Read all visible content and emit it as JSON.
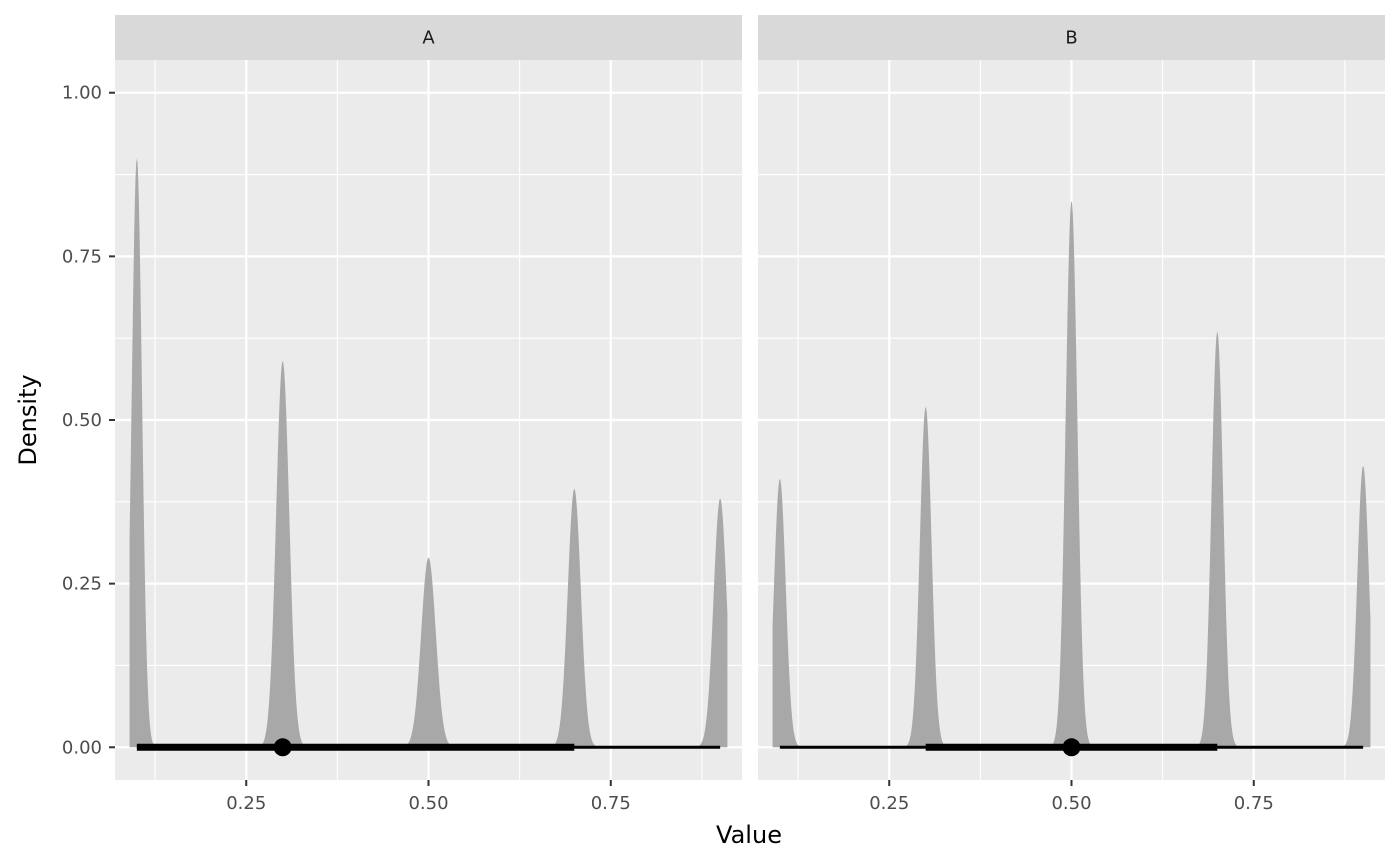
{
  "chart_data": {
    "type": "area",
    "subtype": "faceted-density-with-interval",
    "xlabel": "Value",
    "ylabel": "Density",
    "x_ticks": [
      0.25,
      0.5,
      0.75
    ],
    "x_tick_labels": [
      "0.25",
      "0.50",
      "0.75"
    ],
    "y_ticks": [
      0,
      0.25,
      0.5,
      0.75,
      1.0
    ],
    "y_tick_labels": [
      "0.00",
      "0.25",
      "0.50",
      "0.75",
      "1.00"
    ],
    "xlim": [
      0.07,
      0.93
    ],
    "ylim": [
      -0.05,
      1.05
    ],
    "grid": true,
    "colors": {
      "panel_bg": "#ebebeb",
      "strip_bg": "#d9d9d9",
      "grid": "#ffffff",
      "density_fill": "#a8a8a8",
      "interval": "#000000"
    },
    "facets": [
      {
        "label": "A",
        "range": [
          0.09,
          0.91
        ],
        "peaks": [
          {
            "x": 0.1,
            "height": 0.9,
            "sd": 0.007
          },
          {
            "x": 0.3,
            "height": 0.59,
            "sd": 0.009
          },
          {
            "x": 0.5,
            "height": 0.29,
            "sd": 0.01
          },
          {
            "x": 0.7,
            "height": 0.395,
            "sd": 0.009
          },
          {
            "x": 0.9,
            "height": 0.38,
            "sd": 0.009
          }
        ],
        "point": 0.3,
        "interval_thick": [
          0.1,
          0.7
        ],
        "interval_thin": [
          0.1,
          0.9
        ]
      },
      {
        "label": "B",
        "range": [
          0.09,
          0.91
        ],
        "peaks": [
          {
            "x": 0.1,
            "height": 0.41,
            "sd": 0.008
          },
          {
            "x": 0.3,
            "height": 0.52,
            "sd": 0.008
          },
          {
            "x": 0.5,
            "height": 0.835,
            "sd": 0.008
          },
          {
            "x": 0.7,
            "height": 0.635,
            "sd": 0.008
          },
          {
            "x": 0.9,
            "height": 0.43,
            "sd": 0.008
          }
        ],
        "point": 0.5,
        "interval_thick": [
          0.3,
          0.7
        ],
        "interval_thin": [
          0.1,
          0.9
        ]
      }
    ]
  }
}
